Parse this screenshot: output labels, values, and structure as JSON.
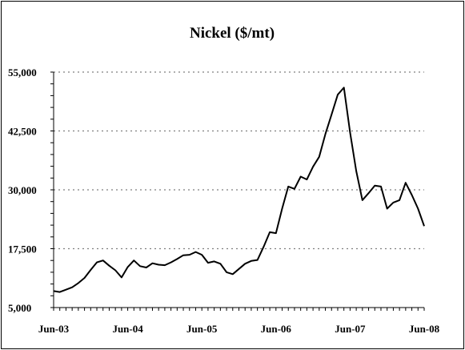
{
  "chart_data": {
    "type": "line",
    "title": "Nickel ($/mt)",
    "xlabel": "",
    "ylabel": "",
    "ylim": [
      5000,
      55000
    ],
    "yticks": [
      5000,
      17500,
      30000,
      42500,
      55000
    ],
    "ytick_labels": [
      "5,000",
      "17,500",
      "30,000",
      "42,500",
      "55,000"
    ],
    "xticks": [
      "Jun-03",
      "Jun-04",
      "Jun-05",
      "Jun-06",
      "Jun-07",
      "Jun-08"
    ],
    "xlim": [
      "2003-06",
      "2008-06"
    ],
    "grid": "horizontal dotted",
    "series": [
      {
        "color": "#000000",
        "x": [
          "2003-06",
          "2003-07",
          "2003-08",
          "2003-09",
          "2003-10",
          "2003-11",
          "2003-12",
          "2004-01",
          "2004-02",
          "2004-03",
          "2004-04",
          "2004-05",
          "2004-06",
          "2004-07",
          "2004-08",
          "2004-09",
          "2004-10",
          "2004-11",
          "2004-12",
          "2005-01",
          "2005-02",
          "2005-03",
          "2005-04",
          "2005-05",
          "2005-06",
          "2005-07",
          "2005-08",
          "2005-09",
          "2005-10",
          "2005-11",
          "2005-12",
          "2006-01",
          "2006-02",
          "2006-03",
          "2006-04",
          "2006-05",
          "2006-06",
          "2006-07",
          "2006-08",
          "2006-09",
          "2006-10",
          "2006-11",
          "2006-12",
          "2007-01",
          "2007-02",
          "2007-03",
          "2007-04",
          "2007-05",
          "2007-06",
          "2007-07",
          "2007-08",
          "2007-09",
          "2007-10",
          "2007-11",
          "2007-12",
          "2008-01",
          "2008-02",
          "2008-03",
          "2008-04",
          "2008-05",
          "2008-06"
        ],
        "y": [
          8500,
          8300,
          8800,
          9300,
          10200,
          11300,
          13000,
          14600,
          15000,
          13900,
          12900,
          11400,
          13600,
          15000,
          13800,
          13500,
          14400,
          14100,
          14000,
          14600,
          15300,
          16100,
          16200,
          16800,
          16200,
          14500,
          14800,
          14300,
          12500,
          12100,
          13200,
          14300,
          14900,
          15100,
          17900,
          21000,
          20800,
          26000,
          30700,
          30200,
          32800,
          32200,
          34900,
          37000,
          41800,
          46000,
          50200,
          51700,
          42200,
          34000,
          27800,
          29300,
          30900,
          30700,
          26000,
          27300,
          27800,
          31500,
          28900,
          26000,
          22300
        ]
      }
    ]
  }
}
